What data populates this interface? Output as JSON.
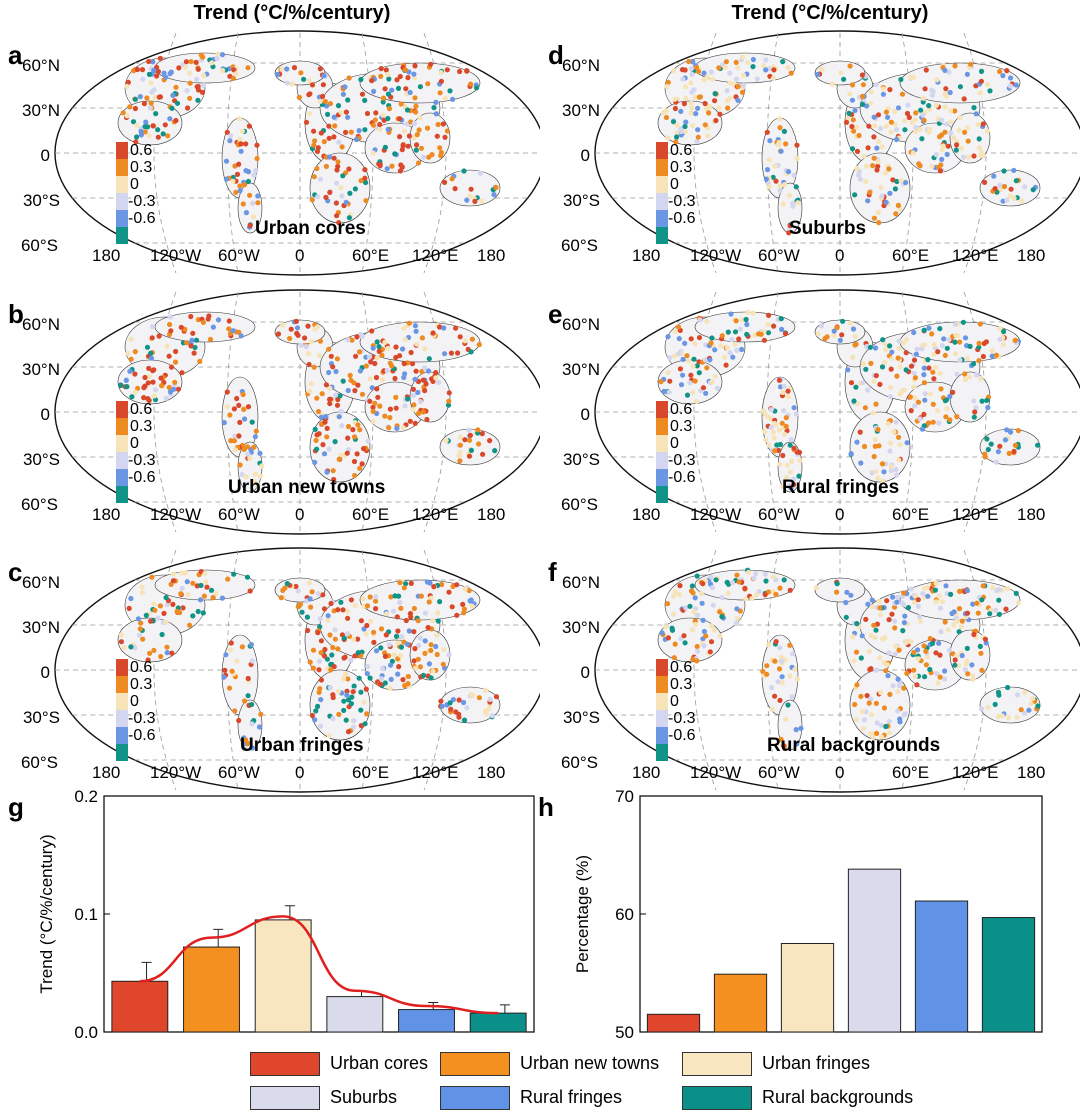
{
  "column_titles": [
    "Trend (°C/%/century)",
    "Trend (°C/%/century)"
  ],
  "colors": {
    "urban_cores": "#e0462c",
    "urban_new_towns": "#f39020",
    "urban_fringes": "#f7e6c0",
    "suburbs": "#d9dbec",
    "rural_fringes": "#6092e6",
    "rural_backgrounds": "#0a9089",
    "trend_line": "#e02020"
  },
  "maps": [
    {
      "panel": "a",
      "title": "Urban cores"
    },
    {
      "panel": "b",
      "title": "Urban new towns"
    },
    {
      "panel": "c",
      "title": "Urban fringes"
    },
    {
      "panel": "d",
      "title": "Suburbs"
    },
    {
      "panel": "e",
      "title": "Rural fringes"
    },
    {
      "panel": "f",
      "title": "Rural backgrounds"
    }
  ],
  "map_axes": {
    "lat_ticks": [
      "60°N",
      "30°N",
      "0",
      "30°S",
      "60°S"
    ],
    "lon_ticks": [
      "180",
      "120°W",
      "60°W",
      "0",
      "60°E",
      "120°E",
      "180"
    ]
  },
  "colorbar": {
    "labels": [
      "0.6",
      "0.3",
      "0",
      "-0.3",
      "-0.6"
    ],
    "colors": [
      "#d9482b",
      "#ee8a22",
      "#f6e3b8",
      "#d3d6ee",
      "#6a96e4",
      "#109487"
    ]
  },
  "chart_data": [
    {
      "panel": "g",
      "type": "bar",
      "title": "",
      "xlabel": "",
      "ylabel": "Trend (°C/%/century)",
      "ylim": [
        0,
        0.2
      ],
      "yticks": [
        "0.0",
        "0.1",
        "0.2"
      ],
      "categories": [
        "Urban cores",
        "Urban new towns",
        "Urban fringes",
        "Suburbs",
        "Rural fringes",
        "Rural backgrounds"
      ],
      "values": [
        0.043,
        0.072,
        0.095,
        0.03,
        0.019,
        0.016
      ],
      "errors": [
        0.016,
        0.015,
        0.012,
        0.005,
        0.006,
        0.007
      ],
      "fit_line": [
        0.043,
        0.08,
        0.098,
        0.035,
        0.022,
        0.016
      ]
    },
    {
      "panel": "h",
      "type": "bar",
      "title": "",
      "xlabel": "",
      "ylabel": "Percentage (%)",
      "ylim": [
        50,
        70
      ],
      "yticks": [
        "50",
        "60",
        "70"
      ],
      "categories": [
        "Urban cores",
        "Urban new towns",
        "Urban fringes",
        "Suburbs",
        "Rural fringes",
        "Rural backgrounds"
      ],
      "values": [
        51.5,
        54.9,
        57.5,
        63.8,
        61.1,
        59.7
      ]
    }
  ],
  "legend": [
    "Urban cores",
    "Urban new towns",
    "Urban  fringes",
    "Suburbs",
    "Rural fringes",
    "Rural backgrounds"
  ]
}
